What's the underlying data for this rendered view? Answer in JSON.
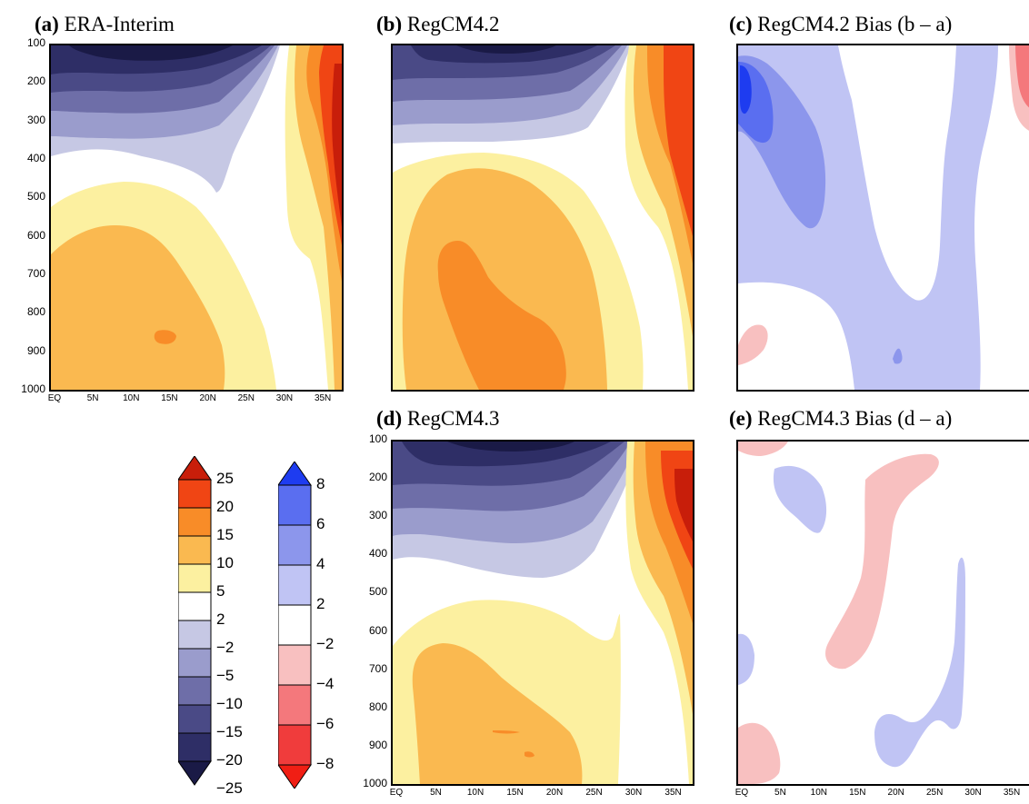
{
  "chart_data": [
    {
      "id": "a",
      "type": "heatmap",
      "panel_letter": "(a)",
      "title": "ERA-Interim",
      "y_ticks": [
        "100",
        "200",
        "300",
        "400",
        "500",
        "600",
        "700",
        "800",
        "900",
        "1000"
      ],
      "x_ticks": [
        "EQ",
        "5N",
        "10N",
        "15N",
        "20N",
        "25N",
        "30N",
        "35N"
      ],
      "ylim": [
        100,
        1000
      ],
      "xlim": [
        0,
        37
      ]
    },
    {
      "id": "b",
      "type": "heatmap",
      "panel_letter": "(b)",
      "title": "RegCM4.2",
      "y_ticks": [],
      "x_ticks": [],
      "ylim": [
        100,
        1000
      ],
      "xlim": [
        0,
        37
      ]
    },
    {
      "id": "c",
      "type": "heatmap",
      "panel_letter": "(c)",
      "title": "RegCM4.2 Bias (b – a)",
      "y_ticks": [],
      "x_ticks": [],
      "ylim": [
        100,
        1000
      ],
      "xlim": [
        0,
        37
      ]
    },
    {
      "id": "d",
      "type": "heatmap",
      "panel_letter": "(d)",
      "title": "RegCM4.3",
      "y_ticks": [
        "100",
        "200",
        "300",
        "400",
        "500",
        "600",
        "700",
        "800",
        "900",
        "1000"
      ],
      "x_ticks": [
        "EQ",
        "5N",
        "10N",
        "15N",
        "20N",
        "25N",
        "30N",
        "35N"
      ],
      "ylim": [
        100,
        1000
      ],
      "xlim": [
        0,
        37
      ]
    },
    {
      "id": "e",
      "type": "heatmap",
      "panel_letter": "(e)",
      "title": "RegCM4.3 Bias (d – a)",
      "y_ticks": [],
      "x_ticks": [
        "EQ",
        "5N",
        "10N",
        "15N",
        "20N",
        "25N",
        "30N",
        "35N"
      ],
      "ylim": [
        100,
        1000
      ],
      "xlim": [
        0,
        37
      ]
    }
  ],
  "colorbars": {
    "fields": {
      "labels": [
        "25",
        "20",
        "15",
        "10",
        "5",
        "2",
        "−2",
        "−5",
        "−10",
        "−15",
        "−20",
        "−25"
      ],
      "colors": [
        "#c81e0a",
        "#f04514",
        "#f88c28",
        "#fab950",
        "#fcf0a0",
        "#ffffff",
        "#c6c8e4",
        "#9a9ccc",
        "#6e6ea8",
        "#4a4a86",
        "#2e2e66",
        "#1a1a46"
      ]
    },
    "bias": {
      "labels": [
        "8",
        "6",
        "4",
        "2",
        "−2",
        "−4",
        "−6",
        "−8"
      ],
      "colors": [
        "#1e3cf0",
        "#5a6ef0",
        "#8c96ec",
        "#c0c4f4",
        "#ffffff",
        "#f8c0c0",
        "#f4787c",
        "#f03c3c",
        "#f01e14"
      ]
    }
  }
}
